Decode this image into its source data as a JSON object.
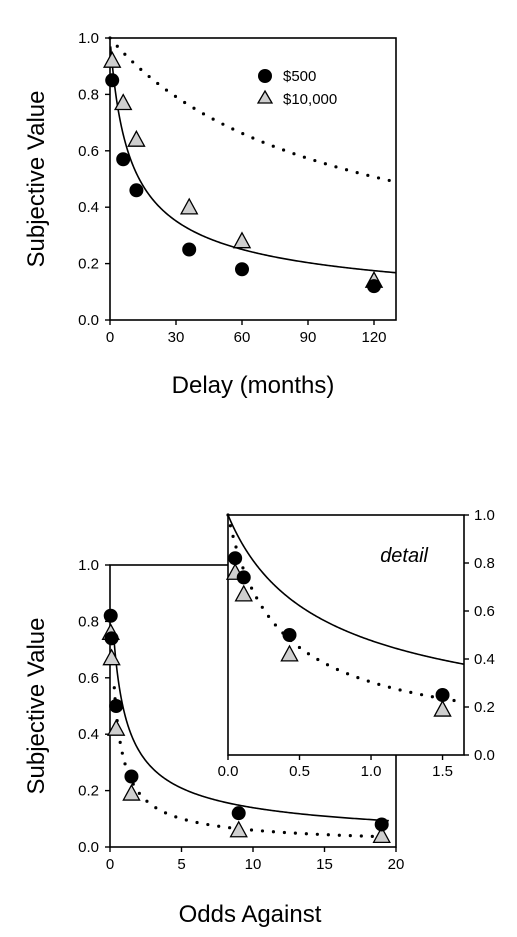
{
  "chart_data": [
    {
      "type": "scatter",
      "xlabel": "Delay (months)",
      "ylabel": "Subjective Value",
      "xlim": [
        0,
        130
      ],
      "ylim": [
        0,
        1
      ],
      "xticks": [
        0,
        30,
        60,
        90,
        120
      ],
      "yticks": [
        0,
        0.2,
        0.4,
        0.6,
        0.8,
        1.0
      ],
      "xtick_labels": [
        "0",
        "30",
        "60",
        "90",
        "120"
      ],
      "ytick_labels": [
        "0.0",
        "0.2",
        "0.4",
        "0.6",
        "0.8",
        "1.0"
      ],
      "legend_position": "top-right",
      "series": [
        {
          "name": "$500",
          "marker": "filled-circle",
          "fit_line": "solid",
          "x": [
            1,
            6,
            12,
            36,
            60,
            120
          ],
          "y": [
            0.85,
            0.57,
            0.46,
            0.25,
            0.18,
            0.12
          ]
        },
        {
          "name": "$10,000",
          "marker": "gray-triangle",
          "fit_line": "dotted",
          "x": [
            1,
            6,
            12,
            36,
            60,
            120
          ],
          "y": [
            0.92,
            0.77,
            0.64,
            0.4,
            0.28,
            0.14
          ]
        }
      ]
    },
    {
      "type": "scatter",
      "xlabel": "Odds Against",
      "ylabel": "Subjective Value",
      "xlim": [
        0,
        20
      ],
      "ylim": [
        0,
        1
      ],
      "xticks": [
        0,
        5,
        10,
        15,
        20
      ],
      "yticks": [
        0,
        0.2,
        0.4,
        0.6,
        0.8,
        1.0
      ],
      "xtick_labels": [
        "0",
        "5",
        "10",
        "15",
        "20"
      ],
      "ytick_labels": [
        "0.0",
        "0.2",
        "0.4",
        "0.6",
        "0.8",
        "1.0"
      ],
      "series": [
        {
          "name": "$500",
          "marker": "filled-circle",
          "fit_line": "solid",
          "x": [
            0.05,
            0.11,
            0.43,
            1.5,
            9,
            19
          ],
          "y": [
            0.82,
            0.74,
            0.5,
            0.25,
            0.12,
            0.08
          ]
        },
        {
          "name": "$10,000",
          "marker": "gray-triangle",
          "fit_line": "dotted",
          "x": [
            0.05,
            0.11,
            0.43,
            1.5,
            9,
            19
          ],
          "y": [
            0.76,
            0.67,
            0.42,
            0.19,
            0.06,
            0.04
          ]
        }
      ]
    },
    {
      "type": "scatter",
      "annotation": "detail",
      "xlim": [
        0,
        1.65
      ],
      "ylim": [
        0,
        1
      ],
      "xticks": [
        0,
        0.5,
        1.0,
        1.5
      ],
      "yticks": [
        0,
        0.2,
        0.4,
        0.6,
        0.8,
        1.0
      ],
      "xtick_labels": [
        "0.0",
        "0.5",
        "1.0",
        "1.5"
      ],
      "ytick_labels": [
        "0.0",
        "0.2",
        "0.4",
        "0.6",
        "0.8",
        "1.0"
      ],
      "series": [
        {
          "name": "$500",
          "marker": "filled-circle",
          "fit_line": "solid",
          "x": [
            0.05,
            0.11,
            0.43,
            1.5
          ],
          "y": [
            0.82,
            0.74,
            0.5,
            0.25
          ]
        },
        {
          "name": "$10,000",
          "marker": "gray-triangle",
          "fit_line": "dotted",
          "x": [
            0.05,
            0.11,
            0.43,
            1.5
          ],
          "y": [
            0.76,
            0.67,
            0.42,
            0.19
          ]
        }
      ]
    }
  ]
}
